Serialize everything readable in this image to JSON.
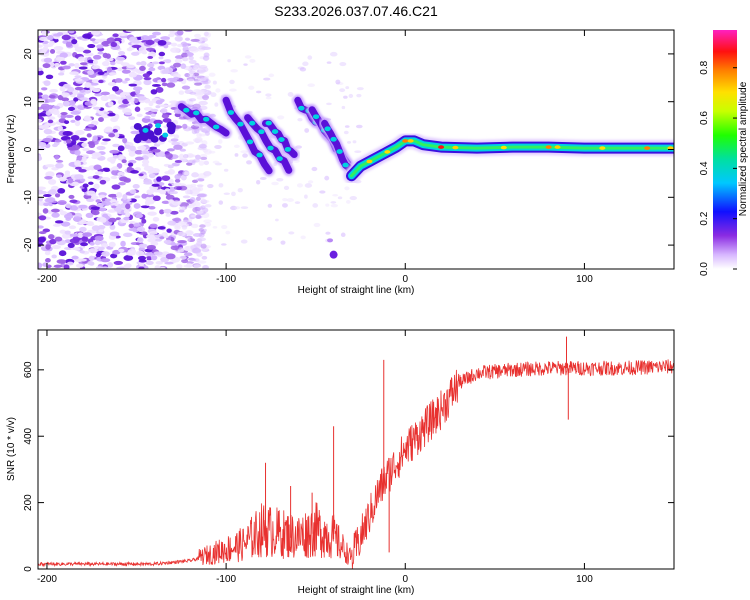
{
  "title": "S233.2026.037.07.46.C21",
  "colors": {
    "snr_line": "#e8312f",
    "track": "#00d2e0",
    "noise": "#8a2be2"
  },
  "chart_data": [
    {
      "type": "heatmap",
      "title": "S233.2026.037.07.46.C21",
      "xlabel": "Height of straight line (km)",
      "ylabel": "Frequency (Hz)",
      "xlim": [
        -205,
        150
      ],
      "ylim": [
        -25,
        25
      ],
      "x_ticks": [
        -200,
        -100,
        0,
        100
      ],
      "y_ticks": [
        -20,
        -10,
        0,
        10,
        20
      ],
      "colorbar": {
        "label": "Normalized spectral amplitude",
        "range": [
          0,
          0.95
        ],
        "ticks": [
          0.0,
          0.2,
          0.4,
          0.6,
          0.8
        ],
        "tick_labels": [
          "0.0",
          "0.2",
          "0.4",
          "0.6",
          "0.8"
        ]
      },
      "ridge": {
        "x": [
          -30,
          -25,
          -20,
          -15,
          -10,
          -5,
          0,
          5,
          10,
          20,
          40,
          60,
          80,
          100,
          120,
          140,
          150
        ],
        "y": [
          -5.5,
          -3.5,
          -2.5,
          -1.5,
          -0.5,
          0.5,
          1.8,
          1.8,
          1.0,
          0.5,
          0.3,
          0.5,
          0.5,
          0.3,
          0.3,
          0.3,
          0.3
        ]
      },
      "diagonal_streaks": [
        {
          "x": [
            -125,
            -100
          ],
          "y": [
            9,
            4
          ]
        },
        {
          "x": [
            -100,
            -76
          ],
          "y": [
            10,
            -5
          ]
        },
        {
          "x": [
            -88,
            -65
          ],
          "y": [
            7,
            -4
          ]
        },
        {
          "x": [
            -78,
            -62
          ],
          "y": [
            6,
            -1
          ]
        },
        {
          "x": [
            -60,
            -42
          ],
          "y": [
            10,
            3
          ]
        },
        {
          "x": [
            -52,
            -32
          ],
          "y": [
            8,
            -3
          ]
        },
        {
          "x": [
            -45,
            -30
          ],
          "y": [
            5,
            -5
          ]
        }
      ],
      "cluster_left": {
        "x": [
          -150,
          -130
        ],
        "y": [
          2,
          6
        ]
      },
      "noise_region_x": [
        -205,
        -110
      ]
    },
    {
      "type": "line",
      "xlabel": "Height of straight line (km)",
      "ylabel": "SNR (10 * v/v)",
      "xlim": [
        -205,
        150
      ],
      "ylim": [
        0,
        720
      ],
      "x_ticks": [
        -200,
        -100,
        0,
        100
      ],
      "y_ticks": [
        0,
        200,
        400,
        600
      ],
      "series": [
        {
          "name": "SNR",
          "envelope": {
            "x": [
              -205,
              -140,
              -120,
              -110,
              -90,
              -80,
              -70,
              -60,
              -50,
              -40,
              -30,
              -20,
              -15,
              -10,
              -5,
              0,
              10,
              20,
              30,
              40,
              60,
              80,
              100,
              120,
              150
            ],
            "y": [
              15,
              15,
              25,
              40,
              70,
              110,
              100,
              90,
              110,
              90,
              30,
              160,
              230,
              280,
              320,
              360,
              420,
              480,
              560,
              590,
              600,
              605,
              605,
              605,
              610
            ]
          },
          "spikes": [
            {
              "x": -78,
              "y": 320
            },
            {
              "x": -64,
              "y": 250
            },
            {
              "x": -52,
              "y": 230
            },
            {
              "x": -40,
              "y": 430
            },
            {
              "x": -12,
              "y": 630
            },
            {
              "x": -9,
              "y": 50
            },
            {
              "x": 90,
              "y": 700
            },
            {
              "x": 91,
              "y": 450
            }
          ]
        }
      ]
    }
  ]
}
